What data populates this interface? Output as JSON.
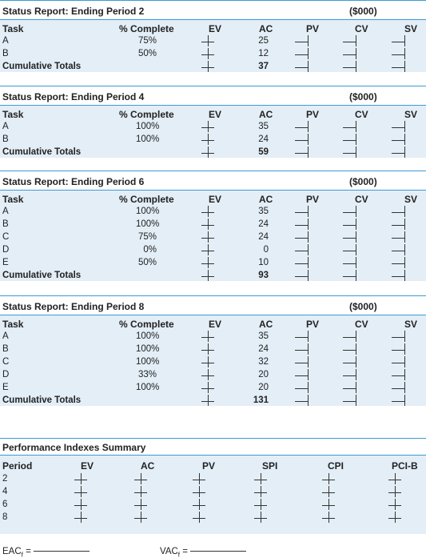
{
  "columns": {
    "task": "Task",
    "pct": "% Complete",
    "ev": "EV",
    "ac": "AC",
    "pv": "PV",
    "cv": "CV",
    "sv": "SV"
  },
  "unit": "($000)",
  "reports": [
    {
      "title": "Status Report: Ending Period 2",
      "rows": [
        {
          "task": "A",
          "pct": "75%",
          "ac": "25"
        },
        {
          "task": "B",
          "pct": "50%",
          "ac": "12"
        }
      ],
      "total_label": "Cumulative Totals",
      "total_ac": "37"
    },
    {
      "title": "Status Report: Ending Period 4",
      "rows": [
        {
          "task": "A",
          "pct": "100%",
          "ac": "35"
        },
        {
          "task": "B",
          "pct": "100%",
          "ac": "24"
        }
      ],
      "total_label": "Cumulative Totals",
      "total_ac": "59"
    },
    {
      "title": "Status Report: Ending Period 6",
      "rows": [
        {
          "task": "A",
          "pct": "100%",
          "ac": "35"
        },
        {
          "task": "B",
          "pct": "100%",
          "ac": "24"
        },
        {
          "task": "C",
          "pct": "75%",
          "ac": "24"
        },
        {
          "task": "D",
          "pct": "0%",
          "ac": "0"
        },
        {
          "task": "E",
          "pct": "50%",
          "ac": "10"
        }
      ],
      "total_label": "Cumulative Totals",
      "total_ac": "93"
    },
    {
      "title": "Status Report: Ending Period 8",
      "rows": [
        {
          "task": "A",
          "pct": "100%",
          "ac": "35"
        },
        {
          "task": "B",
          "pct": "100%",
          "ac": "24"
        },
        {
          "task": "C",
          "pct": "100%",
          "ac": "32"
        },
        {
          "task": "D",
          "pct": "33%",
          "ac": "20"
        },
        {
          "task": "E",
          "pct": "100%",
          "ac": "20"
        }
      ],
      "total_label": "Cumulative Totals",
      "total_ac": "131"
    }
  ],
  "summary": {
    "title": "Performance Indexes Summary",
    "columns": [
      "Period",
      "EV",
      "AC",
      "PV",
      "SPI",
      "CPI",
      "PCI-B"
    ],
    "periods": [
      "2",
      "4",
      "6",
      "8"
    ]
  },
  "footer": {
    "eac": "EAC",
    "eac_sub": "f",
    "vac": "VAC",
    "vac_sub": "f",
    "eq": "="
  }
}
